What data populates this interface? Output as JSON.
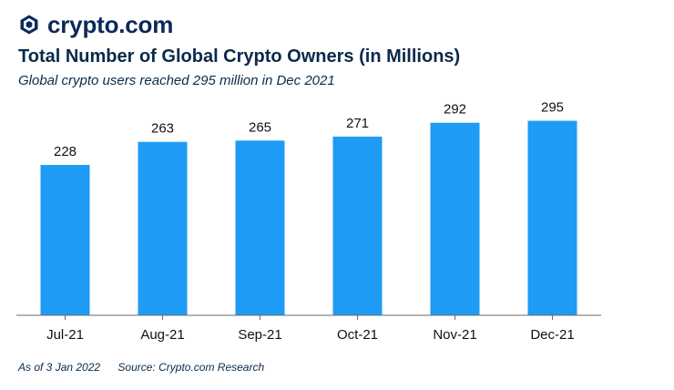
{
  "brand": {
    "name": "crypto.com",
    "logo_icon": "crypto-com-shield-icon",
    "logo_color": "#0a2a5a"
  },
  "colors": {
    "bar": "#1e9bf5",
    "axis": "#6b6b6b",
    "text": "#0a2a4a"
  },
  "chart_data": {
    "type": "bar",
    "title": "Total Number of Global Crypto Owners (in Millions)",
    "subtitle": "Global crypto users reached 295 million in Dec 2021",
    "categories": [
      "Jul-21",
      "Aug-21",
      "Sep-21",
      "Oct-21",
      "Nov-21",
      "Dec-21"
    ],
    "values": [
      228,
      263,
      265,
      271,
      292,
      295
    ],
    "value_labels": [
      "228",
      "263",
      "265",
      "271",
      "292",
      "295"
    ],
    "xlabel": "",
    "ylabel": "",
    "ylim": [
      0,
      340
    ],
    "grid": false,
    "legend": "none"
  },
  "footer": {
    "as_of": "As of 3 Jan 2022",
    "source": "Source: Crypto.com Research"
  }
}
